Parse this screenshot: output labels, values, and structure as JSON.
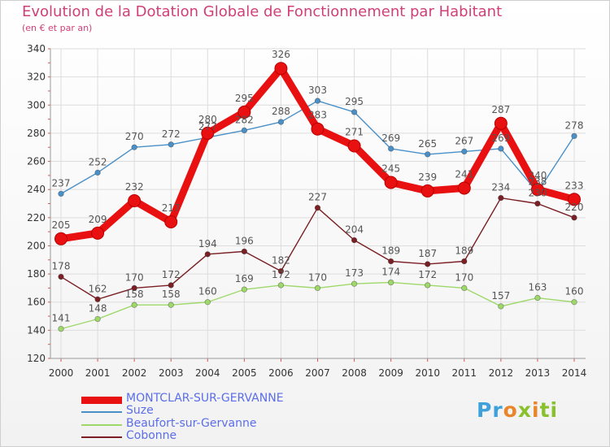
{
  "title": "Evolution de la Dotation Globale de Fonctionnement par Habitant",
  "subtitle": "(en € et par an)",
  "logo": {
    "letters": [
      "P",
      "r",
      "o",
      "x",
      "i",
      "t",
      "i"
    ],
    "colors": [
      "#3fa1dc",
      "#3fa1dc",
      "#e9852a",
      "#89c12d",
      "#e9852a",
      "#89c12d",
      "#89c12d"
    ]
  },
  "chart_data": {
    "type": "line",
    "x": [
      "2000",
      "2001",
      "2002",
      "2003",
      "2004",
      "2005",
      "2006",
      "2007",
      "2008",
      "2009",
      "2010",
      "2011",
      "2012",
      "2013",
      "2014"
    ],
    "ylim": [
      120,
      340
    ],
    "yticks": [
      "120",
      "140",
      "160",
      "180",
      "200",
      "220",
      "240",
      "260",
      "280",
      "300",
      "320",
      "340"
    ],
    "grid": true,
    "legend_position": "bottom-left",
    "series": [
      {
        "name": "Suze",
        "color": "#4a90c8",
        "values": [
          237,
          252,
          270,
          272,
          277,
          282,
          288,
          303,
          295,
          269,
          265,
          267,
          269,
          238,
          278
        ],
        "labels": [
          "237",
          "252",
          "270",
          "272",
          "277",
          "282",
          "288",
          "303",
          "295",
          "269",
          "265",
          "267",
          "269",
          "238",
          "278"
        ]
      },
      {
        "name": "Beaufort-sur-Gervanne",
        "color": "#9ed86a",
        "values": [
          141,
          148,
          158,
          158,
          160,
          169,
          172,
          170,
          173,
          174,
          172,
          170,
          157,
          163,
          160
        ],
        "labels": [
          "141",
          "148",
          "158",
          "158",
          "160",
          "169",
          "172",
          "170",
          "173",
          "174",
          "172",
          "170",
          "157",
          "163",
          "160"
        ]
      },
      {
        "name": "Cobonne",
        "color": "#7a1f24",
        "values": [
          178,
          162,
          170,
          172,
          194,
          196,
          182,
          227,
          204,
          189,
          187,
          189,
          234,
          230,
          220
        ],
        "labels": [
          "178",
          "162",
          "170",
          "172",
          "194",
          "196",
          "182",
          "227",
          "204",
          "189",
          "187",
          "189",
          "234",
          "230",
          "220"
        ]
      },
      {
        "name": "MONTCLAR-SUR-GERVANNE",
        "color": "#e81010",
        "values": [
          205,
          209,
          232,
          217,
          280,
          295,
          326,
          283,
          271,
          245,
          239,
          241,
          287,
          240,
          233
        ],
        "labels": [
          "205",
          "209",
          "232",
          "217",
          "280",
          "295",
          "326",
          "283",
          "271",
          "245",
          "239",
          "241",
          "287",
          "240",
          "233"
        ]
      }
    ]
  },
  "legend": [
    {
      "name": "MONTCLAR-SUR-GERVANNE",
      "color": "#e81010",
      "thickness": 9
    },
    {
      "name": "Suze",
      "color": "#4a90c8",
      "thickness": 2
    },
    {
      "name": "Beaufort-sur-Gervanne",
      "color": "#9ed86a",
      "thickness": 2
    },
    {
      "name": "Cobonne",
      "color": "#7a1f24",
      "thickness": 2
    }
  ]
}
